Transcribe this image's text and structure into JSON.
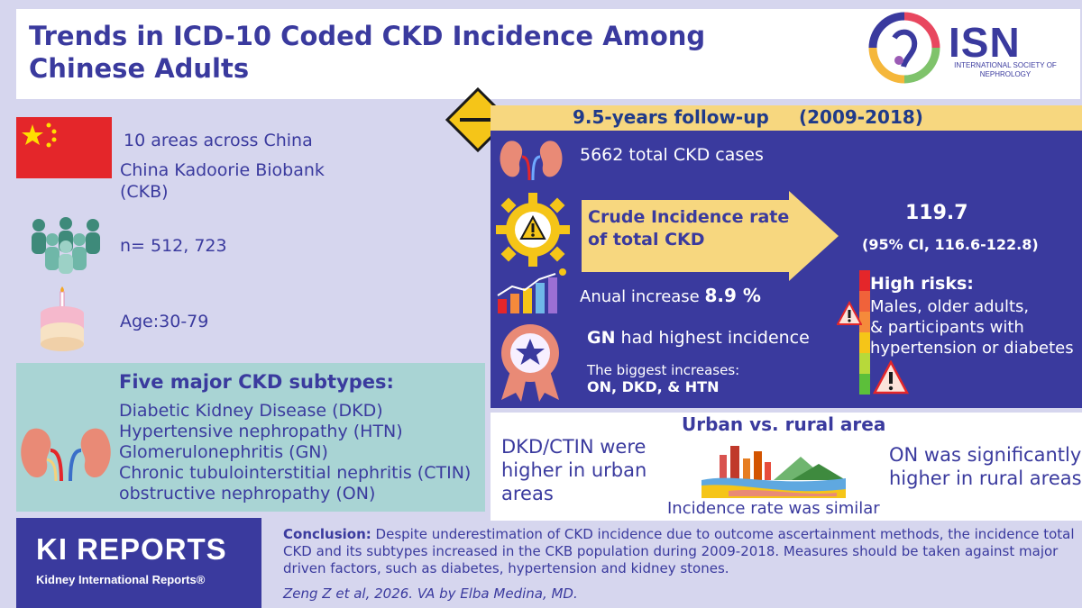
{
  "header": {
    "title_line1": "Trends in ICD-10 Coded CKD Incidence Among",
    "title_line2": "Chinese Adults",
    "logo_text": "ISN",
    "logo_subtitle": "INTERNATIONAL SOCIETY OF NEPHROLOGY"
  },
  "left": {
    "areas": "10 areas across China",
    "biobank_line1": "China Kadoorie Biobank",
    "biobank_line2": "(CKB)",
    "n": "n= 512, 723",
    "age": "Age:30-79"
  },
  "subtypes": {
    "title": "Five major CKD subtypes:",
    "items": [
      "Diabetic Kidney Disease (DKD)",
      "Hypertensive nephropathy (HTN)",
      "Glomerulonephritis (GN)",
      "Chronic tubulointerstitial nephritis (CTIN)",
      "obstructive nephropathy (ON)"
    ]
  },
  "followup": {
    "label": "9.5-years follow-up",
    "years": "(2009-2018)"
  },
  "results": {
    "total_cases": "5662 total CKD cases",
    "crude_line1": "Crude Incidence rate",
    "crude_line2": "of total CKD",
    "rate_value": "119.7",
    "rate_ci": "(95% CI, 116.6-122.8)",
    "annual_label": "Anual increase",
    "annual_value": "8.9 %",
    "gn_bold": "GN",
    "gn_rest": "had highest incidence",
    "biggest_label": "The biggest increases:",
    "biggest_value": "ON, DKD, & HTN",
    "risk_title": "High risks:",
    "risk_line1": "Males, older adults,",
    "risk_line2": "& participants with",
    "risk_line3": "hypertension or diabetes"
  },
  "urban": {
    "title": "Urban vs. rural area",
    "left_line1": "DKD/CTIN were",
    "left_line2": "higher in urban",
    "left_line3": "areas",
    "right_line1": "ON was significantly",
    "right_line2": "higher in rural areas",
    "similar": "Incidence rate was similar"
  },
  "footer": {
    "ki_title": "KI REPORTS",
    "ki_subtitle": "Kidney International Reports®",
    "conclusion_label": "Conclusion:",
    "conclusion_text": " Despite underestimation of CKD incidence due to outcome ascertainment methods, the incidence total CKD and its subtypes  increased  in the CKB population during  2009-2018. Measures should be taken against major driven factors, such as diabetes, hypertension and kidney stones.",
    "citation": "Zeng Z et al, 2026. VA by Elba Medina, MD."
  },
  "icons": [
    "china-flag-icon",
    "kidney-icon",
    "people-icon",
    "cake-icon",
    "gear-warning-icon",
    "bar-chart-icon",
    "star-badge-icon",
    "warning-icon",
    "risk-scale-icon",
    "road-sign-icon",
    "city-landscape-icon"
  ],
  "colors": {
    "primary": "#3a3a9e",
    "accent_yellow": "#f7d77f",
    "teal": "#a9d4d4",
    "background": "#d6d6ee",
    "flag_red": "#e4262a"
  }
}
